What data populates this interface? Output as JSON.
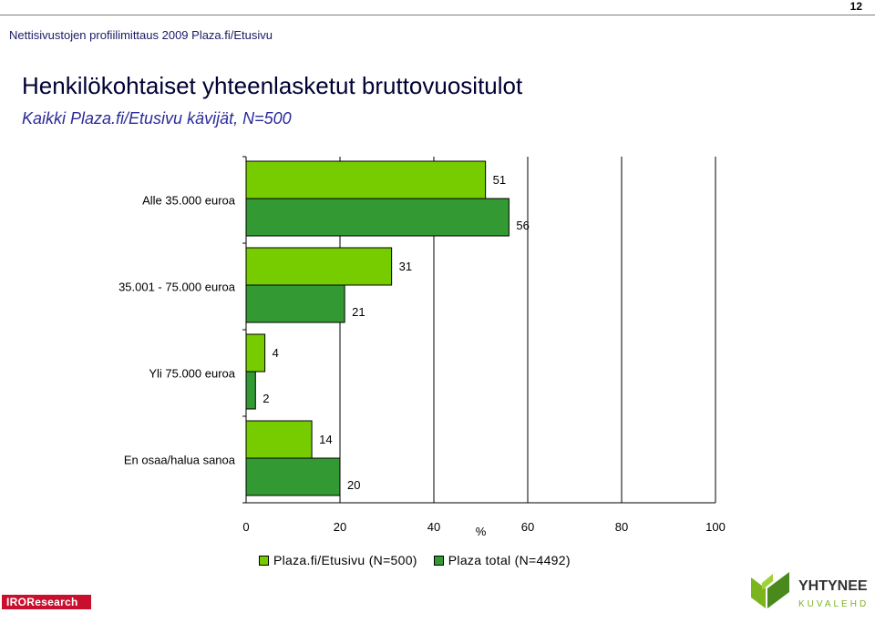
{
  "page": {
    "number": "12"
  },
  "header": {
    "line": "Nettisivustojen profiilimittaus 2009  Plaza.fi/Etusivu"
  },
  "title": "Henkilökohtaiset yhteenlasketut bruttovuositulot",
  "subtitle": "Kaikki Plaza.fi/Etusivu kävijät, N=500",
  "chart_data": {
    "type": "bar",
    "orientation": "horizontal",
    "categories": [
      "Alle 35.000 euroa",
      "35.001 - 75.000 euroa",
      "Yli 75.000 euroa",
      "En osaa/halua sanoa"
    ],
    "series": [
      {
        "name": "Plaza.fi/Etusivu (N=500)",
        "values": [
          51,
          31,
          4,
          14
        ],
        "color": "#77cc00"
      },
      {
        "name": "Plaza total (N=4492)",
        "values": [
          56,
          21,
          2,
          20
        ],
        "color": "#339933"
      }
    ],
    "xlabel": "%",
    "xlim": [
      0,
      100
    ],
    "xticks": [
      0,
      20,
      40,
      60,
      80,
      100
    ],
    "grid": true,
    "legend": "bottom"
  },
  "logos": {
    "left": "IROResearch",
    "right_top": "YHTYNEET",
    "right_bottom": "KUVALEHDET"
  }
}
